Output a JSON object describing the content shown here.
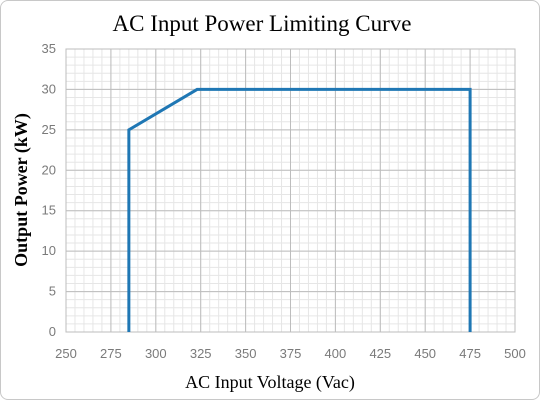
{
  "chart_data": {
    "type": "line",
    "title": "AC Input Power Limiting Curve",
    "xlabel": "AC Input Voltage (Vac)",
    "ylabel": "Output Power (kW)",
    "xlim": [
      250,
      500
    ],
    "ylim": [
      0,
      35
    ],
    "xticks": [
      250,
      275,
      300,
      325,
      350,
      375,
      400,
      425,
      450,
      475,
      500
    ],
    "yticks": [
      0,
      5,
      10,
      15,
      20,
      25,
      30,
      35
    ],
    "grid": true,
    "minor_grid": true,
    "series": [
      {
        "color": "#1f77b4",
        "points": [
          {
            "x": 285,
            "y": 0
          },
          {
            "x": 285,
            "y": 25
          },
          {
            "x": 323,
            "y": 30
          },
          {
            "x": 475,
            "y": 30
          },
          {
            "x": 475,
            "y": 0
          }
        ]
      }
    ]
  }
}
